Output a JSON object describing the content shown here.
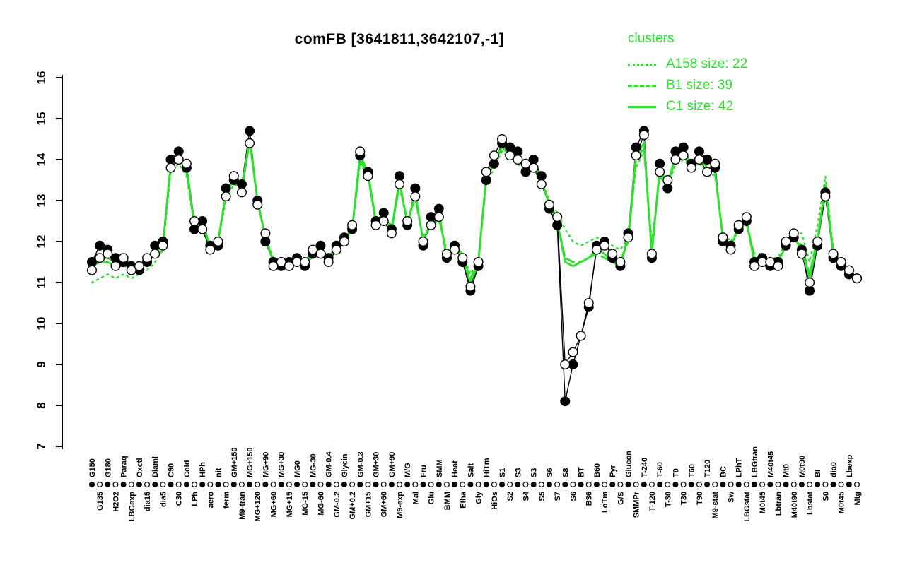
{
  "title": "comFB [3641811,3642107,-1]",
  "colors": {
    "cluster_green": "#2ce22c",
    "series_black": "#000000",
    "open_marker_fill": "#ffffff",
    "background": "#ffffff"
  },
  "legend": {
    "title": "clusters",
    "entries": [
      {
        "label": "A158 size: 22",
        "style": "dotted"
      },
      {
        "label": "B1 size: 39",
        "style": "dashed"
      },
      {
        "label": "C1 size: 42",
        "style": "solid"
      }
    ]
  },
  "chart_data": {
    "type": "line",
    "title": "comFB [3641811,3642107,-1]",
    "xlabel": "",
    "ylabel": "",
    "ylim": [
      7,
      16
    ],
    "yticks": [
      7,
      8,
      9,
      10,
      11,
      12,
      13,
      14,
      15,
      16
    ],
    "grid": false,
    "legend_position": "top-right",
    "categories": [
      "G150",
      "G135",
      "G180",
      "H2O2",
      "Paraq",
      "LBGexp",
      "Oxctl",
      "dia15",
      "Diami",
      "dia5",
      "C90",
      "C30",
      "Cold",
      "LPh",
      "HPh",
      "aero",
      "nit",
      "ferm",
      "GM+150",
      "M9-tran",
      "MG+150",
      "MG+120",
      "MG+90",
      "MG+60",
      "MG+30",
      "MG+15",
      "MG0",
      "MG-15",
      "MG-30",
      "MG-60",
      "GM-0.4",
      "GM-0.2",
      "Glycin",
      "GM+0.2",
      "GM-0.3",
      "GM+15",
      "GM+30",
      "GM+60",
      "GM+90",
      "M9-exp",
      "M/G",
      "Mal",
      "Fru",
      "Glu",
      "SMM",
      "BMM",
      "Heat",
      "Etha",
      "Salt",
      "Gly",
      "HiTm",
      "HiOs",
      "S1",
      "S2",
      "S3",
      "S4",
      "S3",
      "S5",
      "S6",
      "S7",
      "S8",
      "S6",
      "BT",
      "B36",
      "B60",
      "LoTm",
      "Pyr",
      "G/S",
      "Glucon",
      "SMMPr",
      "T-240",
      "T-120",
      "T-60",
      "T-30",
      "T0",
      "T30",
      "T60",
      "T90",
      "T120",
      "M9-stat",
      "BC",
      "Sw",
      "LPhT",
      "LBGstat",
      "LBGtran",
      "M0t45",
      "M40t45",
      "Lbtran",
      "Mt0",
      "M40t90",
      "M0t90",
      "Lbstat",
      "BI",
      "S0",
      "dia0",
      "M0t45",
      "Lbexp",
      "Mtg"
    ],
    "series": [
      {
        "name": "gene probe 1",
        "color": "#000000",
        "line": "solid",
        "width": 1.4,
        "marker": "filled-circle",
        "values": [
          11.5,
          11.9,
          11.8,
          11.6,
          11.5,
          11.4,
          11.3,
          11.5,
          11.9,
          12.0,
          14.0,
          14.2,
          13.8,
          12.3,
          12.5,
          11.9,
          11.9,
          13.3,
          13.5,
          13.4,
          14.7,
          13.0,
          12.0,
          11.5,
          11.4,
          11.5,
          11.6,
          11.4,
          11.7,
          11.9,
          11.6,
          11.9,
          12.1,
          12.3,
          14.1,
          13.7,
          12.5,
          12.7,
          12.3,
          13.6,
          12.4,
          13.3,
          11.9,
          12.6,
          12.8,
          11.6,
          11.9,
          11.5,
          10.8,
          11.4,
          13.5,
          13.9,
          14.4,
          14.3,
          14.2,
          13.7,
          14.0,
          13.6,
          12.8,
          12.4,
          8.1,
          9.0,
          9.7,
          10.4,
          11.9,
          12.0,
          11.6,
          11.4,
          12.2,
          14.3,
          14.7,
          11.6,
          13.9,
          13.3,
          14.2,
          14.3,
          13.9,
          14.2,
          14.0,
          13.8,
          12.0,
          11.9,
          12.3,
          12.5,
          11.5,
          11.6,
          11.4,
          11.5,
          11.9,
          12.1,
          11.8,
          10.8,
          11.9,
          13.2,
          11.6,
          11.4,
          11.2,
          11.1
        ]
      },
      {
        "name": "gene probe 2",
        "color": "#000000",
        "line": "solid",
        "width": 1.4,
        "marker": "open-circle",
        "values": [
          11.3,
          11.6,
          11.7,
          11.4,
          11.6,
          11.3,
          11.4,
          11.6,
          11.7,
          11.9,
          13.8,
          14.0,
          13.9,
          12.5,
          12.3,
          11.8,
          12.0,
          13.1,
          13.6,
          13.2,
          14.4,
          12.9,
          12.2,
          11.4,
          11.5,
          11.4,
          11.5,
          11.5,
          11.8,
          11.7,
          11.5,
          11.8,
          12.0,
          12.4,
          14.2,
          13.6,
          12.4,
          12.5,
          12.2,
          13.4,
          12.5,
          13.1,
          12.0,
          12.4,
          12.6,
          11.7,
          11.8,
          11.6,
          10.9,
          11.5,
          13.7,
          14.1,
          14.5,
          14.1,
          14.0,
          13.9,
          13.8,
          13.4,
          12.9,
          12.6,
          9.0,
          9.3,
          9.7,
          10.5,
          11.8,
          11.9,
          11.7,
          11.5,
          12.1,
          14.1,
          14.6,
          11.7,
          13.7,
          13.5,
          14.0,
          14.1,
          13.8,
          14.0,
          13.7,
          13.9,
          12.1,
          11.8,
          12.4,
          12.6,
          11.4,
          11.5,
          11.5,
          11.4,
          12.0,
          12.2,
          11.7,
          11.0,
          12.0,
          13.1,
          11.7,
          11.5,
          11.3,
          11.1
        ]
      },
      {
        "name": "A158 size: 22",
        "color": "#2ce22c",
        "line": "dotted",
        "width": 2.4,
        "marker": "none",
        "values": [
          11.0,
          11.1,
          11.2,
          11.1,
          11.2,
          11.1,
          11.2,
          11.3,
          11.5,
          11.8,
          13.7,
          13.9,
          13.6,
          12.4,
          12.3,
          11.9,
          12.0,
          13.0,
          13.4,
          13.3,
          14.4,
          13.0,
          12.1,
          11.6,
          11.5,
          11.5,
          11.5,
          11.5,
          11.6,
          11.7,
          11.6,
          11.8,
          12.0,
          12.3,
          13.9,
          13.6,
          12.6,
          12.6,
          12.4,
          13.3,
          12.5,
          13.0,
          12.1,
          12.4,
          12.5,
          11.8,
          11.9,
          11.7,
          11.2,
          11.6,
          13.4,
          13.8,
          14.2,
          14.0,
          13.9,
          13.7,
          13.8,
          13.5,
          13.0,
          12.7,
          12.3,
          12.0,
          11.9,
          12.0,
          12.1,
          12.0,
          11.9,
          11.8,
          12.1,
          13.8,
          14.2,
          12.0,
          13.6,
          13.3,
          13.9,
          14.0,
          13.8,
          13.9,
          13.7,
          13.6,
          12.2,
          12.0,
          12.3,
          12.4,
          11.7,
          11.7,
          11.6,
          11.6,
          12.0,
          12.2,
          12.2,
          11.5,
          12.4,
          13.6,
          11.8,
          11.6,
          11.4,
          11.2
        ]
      },
      {
        "name": "B1 size: 39",
        "color": "#2ce22c",
        "line": "dashed",
        "width": 2.8,
        "marker": "none",
        "values": [
          11.4,
          11.5,
          11.5,
          11.4,
          11.4,
          11.3,
          11.4,
          11.5,
          11.7,
          11.9,
          13.9,
          14.1,
          13.7,
          12.4,
          12.4,
          11.9,
          12.0,
          13.2,
          13.5,
          13.3,
          14.5,
          13.0,
          12.1,
          11.5,
          11.5,
          11.5,
          11.5,
          11.5,
          11.7,
          11.8,
          11.6,
          11.9,
          12.0,
          12.3,
          14.0,
          13.6,
          12.5,
          12.6,
          12.3,
          13.4,
          12.5,
          13.1,
          12.0,
          12.5,
          12.6,
          11.7,
          11.9,
          11.6,
          11.1,
          11.5,
          13.5,
          13.9,
          14.3,
          14.1,
          14.0,
          13.8,
          13.9,
          13.5,
          12.9,
          12.5,
          11.6,
          11.5,
          11.5,
          11.6,
          11.7,
          11.6,
          11.5,
          11.5,
          12.0,
          14.0,
          14.3,
          11.8,
          13.7,
          13.4,
          14.0,
          14.1,
          13.8,
          14.0,
          13.8,
          13.7,
          12.1,
          11.9,
          12.3,
          12.5,
          11.6,
          11.6,
          11.5,
          11.5,
          11.9,
          12.1,
          11.9,
          11.2,
          12.1,
          13.3,
          11.7,
          11.5,
          11.3,
          11.1
        ]
      },
      {
        "name": "C1 size: 42",
        "color": "#2ce22c",
        "line": "solid",
        "width": 2.8,
        "marker": "none",
        "values": [
          11.4,
          11.6,
          11.6,
          11.5,
          11.4,
          11.4,
          11.4,
          11.5,
          11.8,
          11.9,
          13.9,
          14.1,
          13.8,
          12.4,
          12.4,
          11.9,
          12.0,
          13.2,
          13.5,
          13.3,
          14.5,
          13.0,
          12.1,
          11.5,
          11.4,
          11.5,
          11.5,
          11.4,
          11.7,
          11.8,
          11.6,
          11.9,
          12.1,
          12.3,
          14.1,
          13.7,
          12.5,
          12.6,
          12.3,
          13.5,
          12.4,
          13.2,
          12.0,
          12.5,
          12.7,
          11.6,
          11.9,
          11.6,
          11.0,
          11.5,
          13.6,
          14.0,
          14.3,
          14.2,
          14.1,
          13.8,
          13.9,
          13.5,
          12.9,
          12.5,
          11.5,
          11.4,
          11.5,
          11.6,
          11.8,
          11.7,
          11.5,
          11.4,
          12.1,
          14.1,
          14.4,
          11.7,
          13.8,
          13.4,
          14.1,
          14.2,
          13.9,
          14.1,
          13.8,
          13.7,
          12.1,
          11.9,
          12.3,
          12.5,
          11.5,
          11.6,
          11.4,
          11.5,
          11.9,
          12.1,
          11.8,
          11.1,
          12.0,
          13.4,
          11.7,
          11.5,
          11.3,
          11.1
        ]
      }
    ]
  }
}
